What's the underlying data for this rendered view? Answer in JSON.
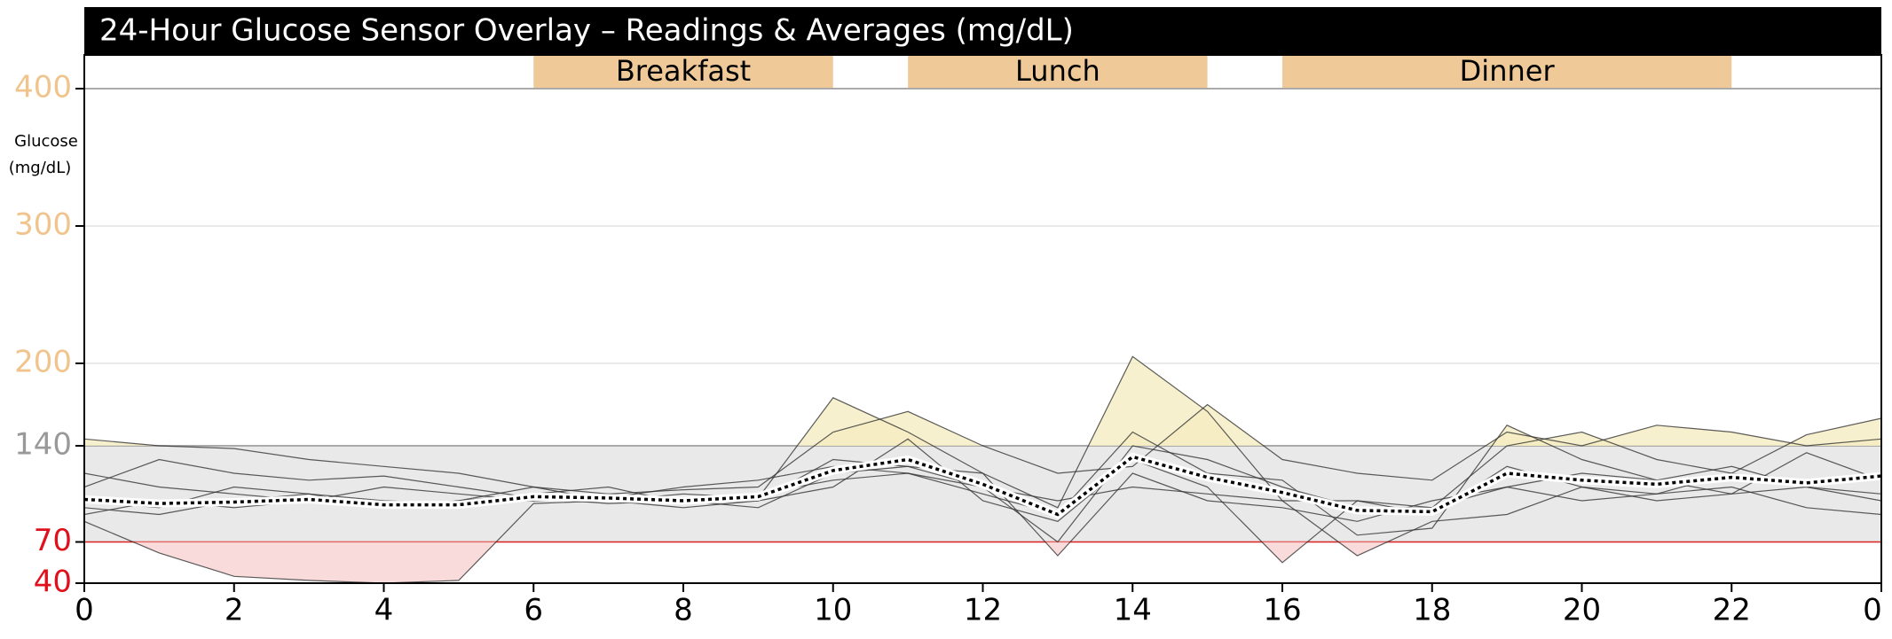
{
  "chart_data": {
    "type": "line",
    "title": "24-Hour Glucose Sensor Overlay – Readings & Averages (mg/dL)",
    "y_label": [
      "Glucose",
      "(mg/dL)"
    ],
    "meals": [
      {
        "label": "Breakfast",
        "start": 6,
        "end": 10
      },
      {
        "label": "Lunch",
        "start": 11,
        "end": 15
      },
      {
        "label": "Dinner",
        "start": 16,
        "end": 22
      }
    ],
    "meal_color": "#f0c999",
    "target_range": [
      70,
      140
    ],
    "high_color": "#f5ecc2",
    "low_color": "#f8d2d2",
    "band_color": "#e9e9e9",
    "x": [
      0,
      1,
      2,
      3,
      4,
      5,
      6,
      7,
      8,
      9,
      10,
      11,
      12,
      13,
      14,
      15,
      16,
      17,
      18,
      19,
      20,
      21,
      22,
      23,
      24
    ],
    "series": [
      {
        "color": "#333333",
        "values": [
          145,
          140,
          138,
          130,
          125,
          120,
          110,
          105,
          108,
          110,
          150,
          165,
          140,
          120,
          125,
          170,
          130,
          120,
          115,
          150,
          140,
          155,
          150,
          140,
          145
        ]
      },
      {
        "color": "#333333",
        "values": [
          85,
          62,
          45,
          42,
          40,
          42,
          98,
          100,
          105,
          102,
          175,
          150,
          120,
          95,
          205,
          165,
          100,
          60,
          85,
          90,
          110,
          100,
          105,
          110,
          100
        ]
      },
      {
        "color": "#333333",
        "values": [
          100,
          95,
          110,
          105,
          100,
          98,
          100,
          105,
          100,
          95,
          120,
          125,
          110,
          70,
          140,
          130,
          110,
          95,
          95,
          140,
          150,
          130,
          120,
          148,
          160
        ]
      },
      {
        "color": "#333333",
        "values": [
          90,
          100,
          95,
          100,
          95,
          100,
          110,
          100,
          95,
          100,
          110,
          145,
          100,
          85,
          130,
          110,
          55,
          100,
          90,
          125,
          110,
          105,
          120,
          110,
          105
        ]
      },
      {
        "color": "#333333",
        "values": [
          110,
          130,
          120,
          115,
          118,
          110,
          102,
          98,
          100,
          105,
          115,
          120,
          105,
          90,
          150,
          120,
          115,
          75,
          80,
          155,
          130,
          115,
          105,
          135,
          115
        ]
      },
      {
        "color": "#333333",
        "values": [
          95,
          90,
          100,
          105,
          95,
          100,
          105,
          110,
          98,
          100,
          130,
          125,
          120,
          60,
          120,
          100,
          95,
          85,
          100,
          110,
          100,
          105,
          110,
          95,
          90
        ]
      },
      {
        "color": "#333333",
        "values": [
          120,
          110,
          105,
          100,
          110,
          105,
          100,
          102,
          110,
          115,
          125,
          120,
          110,
          100,
          110,
          105,
          100,
          100,
          95,
          110,
          120,
          115,
          125,
          110,
          120
        ]
      }
    ],
    "average": {
      "color": "#000000",
      "values": [
        101,
        98,
        99,
        101,
        97,
        97,
        103,
        102,
        100,
        103,
        122,
        130,
        112,
        90,
        132,
        117,
        106,
        93,
        92,
        120,
        115,
        112,
        117,
        113,
        118
      ]
    },
    "xlim": [
      0,
      24
    ],
    "xticks": [
      0,
      2,
      4,
      6,
      8,
      10,
      12,
      14,
      16,
      18,
      20,
      22,
      {
        "value": 24,
        "label": "0"
      }
    ],
    "ylim": [
      40,
      400
    ],
    "yticks": [
      40,
      70,
      140,
      200,
      300,
      400
    ],
    "ytick_colors": [
      "#e0101c",
      "#e0101c",
      "#999999",
      "#f0c48c",
      "#f0c48c",
      "#f0c48c"
    ],
    "grid": true
  }
}
